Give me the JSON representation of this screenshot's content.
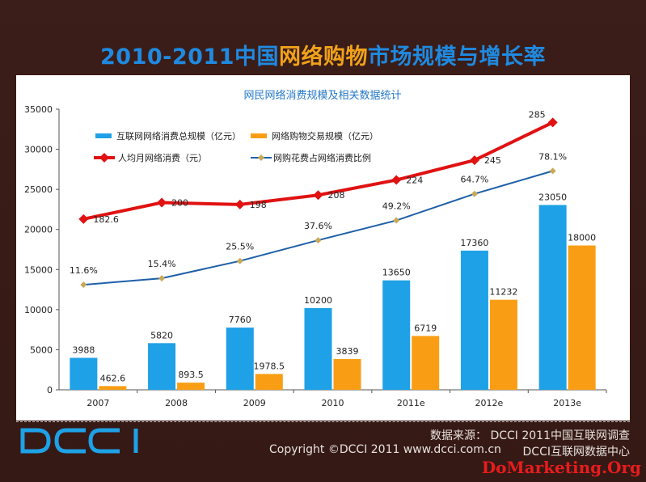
{
  "page": {
    "title_part1": "2010-2011中国",
    "title_highlight": "网络购物",
    "title_part2": "市场规模与增长率",
    "source": "数据来源： DCCI 2011中国互联网调查",
    "copyright": "Copyright ©DCCI 2011 www.dcci.com.cn",
    "center": "DCCI互联网数据中心",
    "logo_text": "DCCI",
    "watermark": "DoMarketing.Org"
  },
  "colors": {
    "blue_bar": "#1ea1e6",
    "orange_bar": "#f99e14",
    "red_line": "#e01212",
    "blue_line": "#1d5fa8",
    "marker": "#c8a957"
  },
  "chart_data": {
    "type": "bar",
    "title": "网民网络消费规模及相关数据统计",
    "categories": [
      "2007",
      "2008",
      "2009",
      "2010",
      "2011e",
      "2012e",
      "2013e"
    ],
    "ylim": [
      0,
      35000
    ],
    "yticks": [
      0,
      5000,
      10000,
      15000,
      20000,
      25000,
      30000,
      35000
    ],
    "series": [
      {
        "name": "互联网网络消费总规模（亿元）",
        "kind": "bar",
        "values": [
          3988,
          5820,
          7760,
          10200,
          13650,
          17360,
          23050
        ],
        "labels": [
          "3988",
          "5820",
          "7760",
          "10200",
          "13650",
          "17360",
          "23050"
        ]
      },
      {
        "name": "网络购物交易规模（亿元）",
        "kind": "bar",
        "values": [
          462.6,
          893.5,
          1978.5,
          3839,
          6719,
          11232,
          18000
        ],
        "labels": [
          "462.6",
          "893.5",
          "1978.5",
          "3839",
          "6719",
          "11232",
          "18000"
        ]
      },
      {
        "name": "人均月网络消费（元）",
        "kind": "line",
        "values": [
          182.6,
          200,
          198,
          208,
          224,
          245,
          285
        ],
        "labels": [
          "182.6",
          "200",
          "198",
          "208",
          "224",
          "245",
          "285"
        ]
      },
      {
        "name": "网购花费占网络消费比例",
        "kind": "line",
        "values": [
          11.6,
          15.4,
          25.5,
          37.6,
          49.2,
          64.7,
          78.1
        ],
        "labels": [
          "11.6%",
          "15.4%",
          "25.5%",
          "37.6%",
          "49.2%",
          "64.7%",
          "78.1%"
        ]
      }
    ],
    "grid": false,
    "legend": "top-left"
  }
}
